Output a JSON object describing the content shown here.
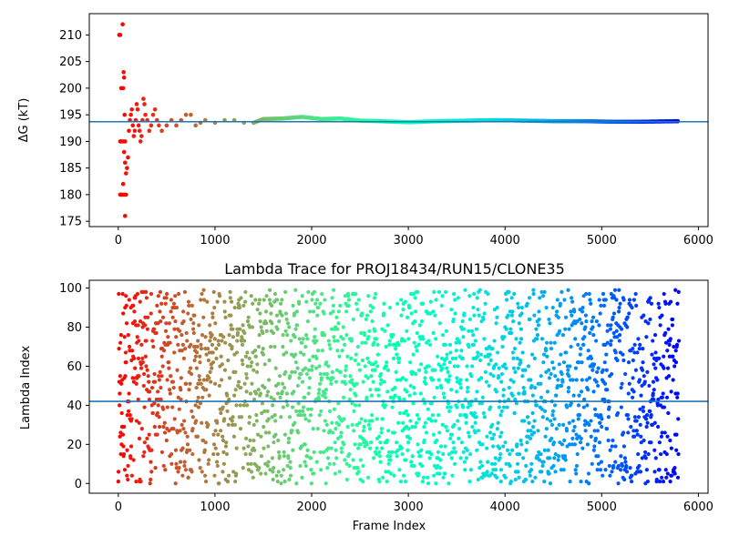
{
  "chart_data": [
    {
      "type": "scatter",
      "title": "",
      "xlabel": "",
      "ylabel": "ΔG (kT)",
      "xlim": [
        -300,
        6100
      ],
      "ylim": [
        174,
        214
      ],
      "xticks": [
        0,
        1000,
        2000,
        3000,
        4000,
        5000,
        6000
      ],
      "yticks": [
        175,
        180,
        185,
        190,
        195,
        200,
        205,
        210
      ],
      "hline": 193.7,
      "hline_color": "#1f77b4",
      "colormap": "rainbow",
      "frames": 5800,
      "convergence_mean": 193.7,
      "early_points": [
        [
          10,
          210
        ],
        [
          20,
          210
        ],
        [
          30,
          200
        ],
        [
          40,
          216
        ],
        [
          45,
          212
        ],
        [
          50,
          200
        ],
        [
          55,
          203
        ],
        [
          60,
          202
        ],
        [
          65,
          195
        ],
        [
          70,
          190
        ],
        [
          80,
          180
        ],
        [
          20,
          180
        ],
        [
          30,
          180
        ],
        [
          40,
          180
        ],
        [
          50,
          182
        ],
        [
          60,
          180
        ],
        [
          70,
          176
        ],
        [
          20,
          190
        ],
        [
          30,
          190
        ],
        [
          50,
          190
        ],
        [
          60,
          188
        ],
        [
          70,
          186
        ],
        [
          80,
          184
        ],
        [
          90,
          185
        ],
        [
          100,
          187
        ],
        [
          110,
          192
        ],
        [
          120,
          194
        ],
        [
          130,
          195
        ],
        [
          140,
          196
        ],
        [
          150,
          193
        ],
        [
          160,
          191
        ],
        [
          170,
          192
        ],
        [
          180,
          194
        ],
        [
          190,
          197
        ],
        [
          200,
          196
        ],
        [
          210,
          193
        ],
        [
          220,
          192
        ],
        [
          230,
          190
        ],
        [
          240,
          191
        ],
        [
          250,
          194
        ],
        [
          260,
          198
        ],
        [
          270,
          197
        ],
        [
          280,
          195
        ],
        [
          300,
          194
        ],
        [
          320,
          192
        ],
        [
          340,
          193
        ],
        [
          360,
          195
        ],
        [
          380,
          196
        ],
        [
          400,
          194
        ],
        [
          420,
          193
        ],
        [
          450,
          192
        ],
        [
          500,
          193
        ],
        [
          550,
          194
        ],
        [
          600,
          193
        ],
        [
          650,
          194
        ],
        [
          700,
          195
        ],
        [
          750,
          195
        ],
        [
          800,
          193
        ],
        [
          850,
          193.5
        ],
        [
          900,
          194
        ],
        [
          1000,
          193.5
        ],
        [
          1100,
          194
        ],
        [
          1200,
          194
        ],
        [
          1300,
          193.5
        ],
        [
          1400,
          193.5
        ]
      ],
      "trace": [
        [
          1500,
          194.2
        ],
        [
          1700,
          194.3
        ],
        [
          1900,
          194.6
        ],
        [
          2100,
          194.2
        ],
        [
          2300,
          194.3
        ],
        [
          2500,
          193.9
        ],
        [
          2700,
          193.8
        ],
        [
          3000,
          193.6
        ],
        [
          3300,
          193.8
        ],
        [
          3600,
          193.9
        ],
        [
          3900,
          194.0
        ],
        [
          4200,
          193.9
        ],
        [
          4500,
          193.8
        ],
        [
          4800,
          193.8
        ],
        [
          5100,
          193.7
        ],
        [
          5400,
          193.7
        ],
        [
          5800,
          193.8
        ]
      ]
    },
    {
      "type": "scatter",
      "title": "Lambda Trace for PROJ18434/RUN15/CLONE35",
      "xlabel": "Frame Index",
      "ylabel": "Lambda Index",
      "xlim": [
        -300,
        6100
      ],
      "ylim": [
        -5,
        104
      ],
      "xticks": [
        0,
        1000,
        2000,
        3000,
        4000,
        5000,
        6000
      ],
      "yticks": [
        0,
        20,
        40,
        60,
        80,
        100
      ],
      "hline": 42,
      "hline_color": "#1f77b4",
      "colormap": "rainbow",
      "frames": 5800,
      "lambda_range": [
        0,
        99
      ],
      "frame_interval": 2.4,
      "random_seed": 7
    }
  ]
}
